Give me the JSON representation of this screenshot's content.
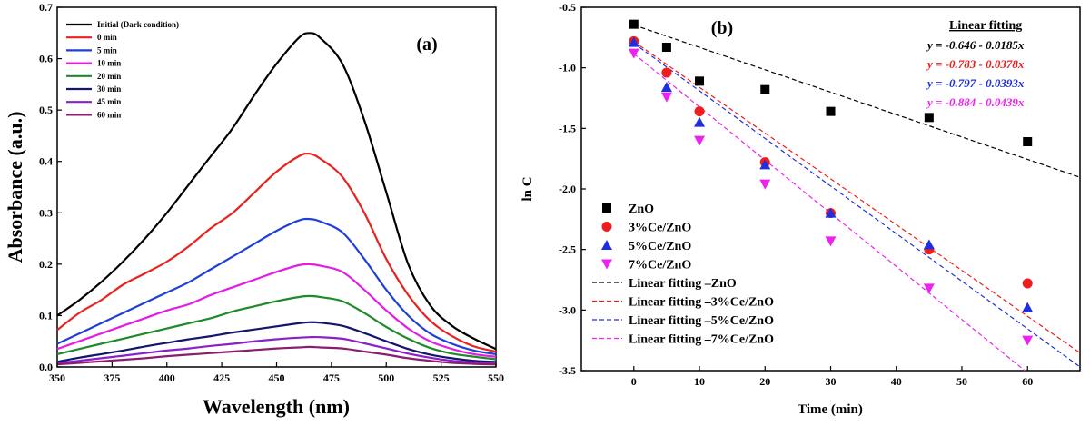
{
  "chart_data": [
    {
      "type": "line",
      "panel_label": "(a)",
      "xlabel": "Wavelength (nm)",
      "ylabel": "Absorbance (a.u.)",
      "xlim": [
        350,
        550
      ],
      "ylim": [
        0.0,
        0.7
      ],
      "xticks": [
        350,
        375,
        400,
        425,
        450,
        475,
        500,
        525,
        550
      ],
      "yticks": [
        0.0,
        0.1,
        0.2,
        0.3,
        0.4,
        0.5,
        0.6,
        0.7
      ],
      "xtick_labels": [
        "350",
        "375",
        "400",
        "425",
        "450",
        "475",
        "500",
        "525",
        "550"
      ],
      "ytick_labels": [
        "0.0",
        "0.1",
        "0.2",
        "0.3",
        "0.4",
        "0.5",
        "0.6",
        "0.7"
      ],
      "legend_position": "top-left",
      "x": [
        350,
        360,
        370,
        380,
        390,
        400,
        410,
        420,
        430,
        440,
        450,
        460,
        465,
        470,
        480,
        490,
        500,
        510,
        520,
        530,
        540,
        550
      ],
      "series": [
        {
          "name": "Initial (Dark condition)",
          "color": "#000000",
          "values": [
            0.1,
            0.13,
            0.165,
            0.205,
            0.25,
            0.3,
            0.355,
            0.41,
            0.465,
            0.53,
            0.59,
            0.64,
            0.65,
            0.64,
            0.59,
            0.48,
            0.34,
            0.2,
            0.12,
            0.08,
            0.055,
            0.035
          ]
        },
        {
          "name": "0 min",
          "color": "#e8221e",
          "values": [
            0.072,
            0.105,
            0.13,
            0.16,
            0.182,
            0.205,
            0.235,
            0.27,
            0.3,
            0.34,
            0.38,
            0.41,
            0.415,
            0.405,
            0.37,
            0.3,
            0.21,
            0.14,
            0.09,
            0.06,
            0.04,
            0.03
          ]
        },
        {
          "name": "5 min",
          "color": "#1f3fd8",
          "values": [
            0.045,
            0.065,
            0.085,
            0.105,
            0.125,
            0.145,
            0.165,
            0.19,
            0.215,
            0.24,
            0.265,
            0.285,
            0.288,
            0.283,
            0.262,
            0.21,
            0.15,
            0.1,
            0.065,
            0.045,
            0.032,
            0.025
          ]
        },
        {
          "name": "10 min",
          "color": "#e41de4",
          "values": [
            0.035,
            0.05,
            0.065,
            0.08,
            0.095,
            0.11,
            0.122,
            0.14,
            0.155,
            0.17,
            0.185,
            0.198,
            0.2,
            0.197,
            0.185,
            0.15,
            0.11,
            0.075,
            0.05,
            0.035,
            0.025,
            0.02
          ]
        },
        {
          "name": "20 min",
          "color": "#1f8a2a",
          "values": [
            0.025,
            0.035,
            0.045,
            0.055,
            0.065,
            0.075,
            0.085,
            0.095,
            0.108,
            0.118,
            0.128,
            0.136,
            0.138,
            0.136,
            0.128,
            0.105,
            0.078,
            0.055,
            0.037,
            0.026,
            0.02,
            0.015
          ]
        },
        {
          "name": "30 min",
          "color": "#14156b",
          "values": [
            0.01,
            0.018,
            0.025,
            0.032,
            0.04,
            0.047,
            0.054,
            0.06,
            0.067,
            0.073,
            0.079,
            0.085,
            0.087,
            0.086,
            0.08,
            0.066,
            0.05,
            0.035,
            0.024,
            0.017,
            0.012,
            0.01
          ]
        },
        {
          "name": "45 min",
          "color": "#8a20c8",
          "values": [
            0.008,
            0.012,
            0.017,
            0.022,
            0.027,
            0.032,
            0.036,
            0.041,
            0.045,
            0.05,
            0.054,
            0.057,
            0.058,
            0.058,
            0.055,
            0.046,
            0.036,
            0.026,
            0.018,
            0.012,
            0.009,
            0.007
          ]
        },
        {
          "name": "60 min",
          "color": "#8a1e6e",
          "values": [
            0.005,
            0.008,
            0.011,
            0.014,
            0.017,
            0.021,
            0.024,
            0.027,
            0.03,
            0.033,
            0.036,
            0.038,
            0.039,
            0.038,
            0.036,
            0.03,
            0.024,
            0.017,
            0.012,
            0.008,
            0.006,
            0.005
          ]
        }
      ]
    },
    {
      "type": "scatter",
      "panel_label": "(b)",
      "xlabel": "Time (min)",
      "ylabel": "ln C",
      "xlim": [
        -8,
        68
      ],
      "ylim": [
        -3.5,
        -0.5
      ],
      "xticks": [
        0,
        10,
        20,
        30,
        40,
        50,
        60
      ],
      "yticks": [
        -3.5,
        -3.0,
        -2.5,
        -2.0,
        -1.5,
        -1.0,
        -0.5
      ],
      "xtick_labels": [
        "0",
        "10",
        "20",
        "30",
        "40",
        "50",
        "60"
      ],
      "ytick_labels": [
        "-3.5",
        "-3.0",
        "-2.5",
        "-2.0",
        "-1.5",
        "-1.0",
        "-0.5"
      ],
      "legend_position": "bottom-left",
      "fit_title": "Linear fitting",
      "x": [
        0,
        5,
        10,
        20,
        30,
        45,
        60
      ],
      "series": [
        {
          "name": "ZnO",
          "color": "#000000",
          "marker": "square",
          "values": [
            -0.64,
            -0.83,
            -1.11,
            -1.18,
            -1.36,
            -1.41,
            -1.61
          ],
          "fit_label": "Linear fitting –ZnO",
          "fit": {
            "intercept": -0.646,
            "slope": -0.0185
          },
          "equation": "y = -0.646 - 0.0185x",
          "equation_color": "#000000"
        },
        {
          "name": "3%Ce/ZnO",
          "color": "#ef1c1c",
          "marker": "circle",
          "values": [
            -0.78,
            -1.04,
            -1.36,
            -1.78,
            -2.2,
            -2.5,
            -2.78
          ],
          "fit_label": "Linear fitting –3%Ce/ZnO",
          "fit": {
            "intercept": -0.783,
            "slope": -0.0378
          },
          "equation": "y = -0.783 - 0.0378x",
          "equation_color": "#ef1c1c"
        },
        {
          "name": "5%Ce/ZnO",
          "color": "#1f2fe0",
          "marker": "triangle-up",
          "values": [
            -0.79,
            -1.16,
            -1.45,
            -1.8,
            -2.2,
            -2.46,
            -2.98
          ],
          "fit_label": "Linear fitting –5%Ce/ZnO",
          "fit": {
            "intercept": -0.797,
            "slope": -0.0393
          },
          "equation": "y = -0.797 - 0.0393x",
          "equation_color": "#1f2fe0"
        },
        {
          "name": "7%Ce/ZnO",
          "color": "#ee22ee",
          "marker": "triangle-down",
          "values": [
            -0.88,
            -1.24,
            -1.6,
            -1.96,
            -2.43,
            -2.82,
            -3.25
          ],
          "fit_label": "Linear fitting –7%Ce/ZnO",
          "fit": {
            "intercept": -0.884,
            "slope": -0.0439
          },
          "equation": "y = -0.884 - 0.0439x",
          "equation_color": "#ee22ee"
        }
      ]
    }
  ]
}
